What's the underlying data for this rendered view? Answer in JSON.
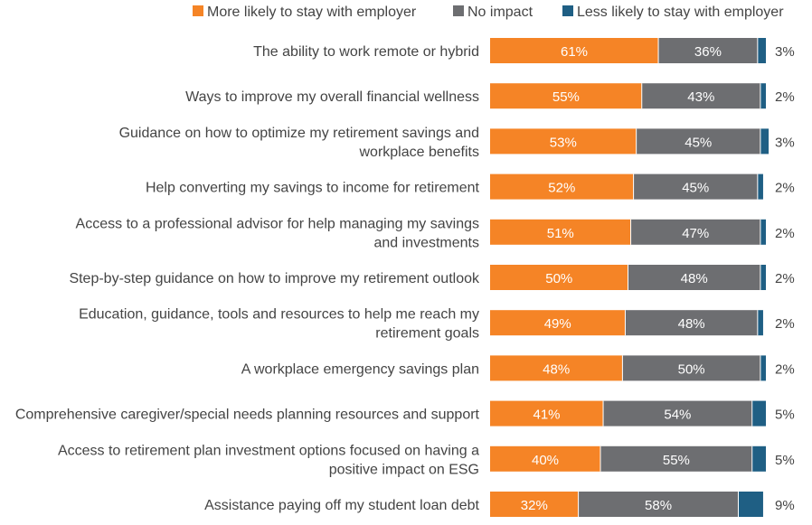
{
  "chart_data": {
    "type": "bar",
    "orientation": "horizontal",
    "stacked": true,
    "unit": "%",
    "xlim": [
      0,
      100
    ],
    "legend_position": "top-right",
    "grid": false,
    "categories": [
      [
        "The ability to work remote or hybrid"
      ],
      [
        "Ways to improve my overall financial wellness"
      ],
      [
        "Guidance on how to optimize my retirement savings and",
        "workplace benefits"
      ],
      [
        "Help converting my savings to income for retirement"
      ],
      [
        "Access to a professional advisor for help managing my savings",
        "and investments"
      ],
      [
        "Step-by-step guidance on how to improve my retirement outlook"
      ],
      [
        "Education, guidance, tools and resources to help me reach my",
        "retirement goals"
      ],
      [
        "A workplace emergency savings plan"
      ],
      [
        "Comprehensive caregiver/special needs planning resources and support"
      ],
      [
        "Access to retirement plan investment options focused on having a",
        "positive impact on ESG"
      ],
      [
        "Assistance paying off my student loan debt"
      ]
    ],
    "series": [
      {
        "name": "More likely to stay with employer",
        "color": "#F58426",
        "values": [
          61,
          55,
          53,
          52,
          51,
          50,
          49,
          48,
          41,
          40,
          32
        ]
      },
      {
        "name": "No impact",
        "color": "#6D6E71",
        "values": [
          36,
          43,
          45,
          45,
          47,
          48,
          48,
          50,
          54,
          55,
          58
        ]
      },
      {
        "name": "Less likely to stay with employer",
        "color": "#1F5F84",
        "values": [
          3,
          2,
          3,
          2,
          2,
          2,
          2,
          2,
          5,
          5,
          9
        ]
      }
    ]
  }
}
